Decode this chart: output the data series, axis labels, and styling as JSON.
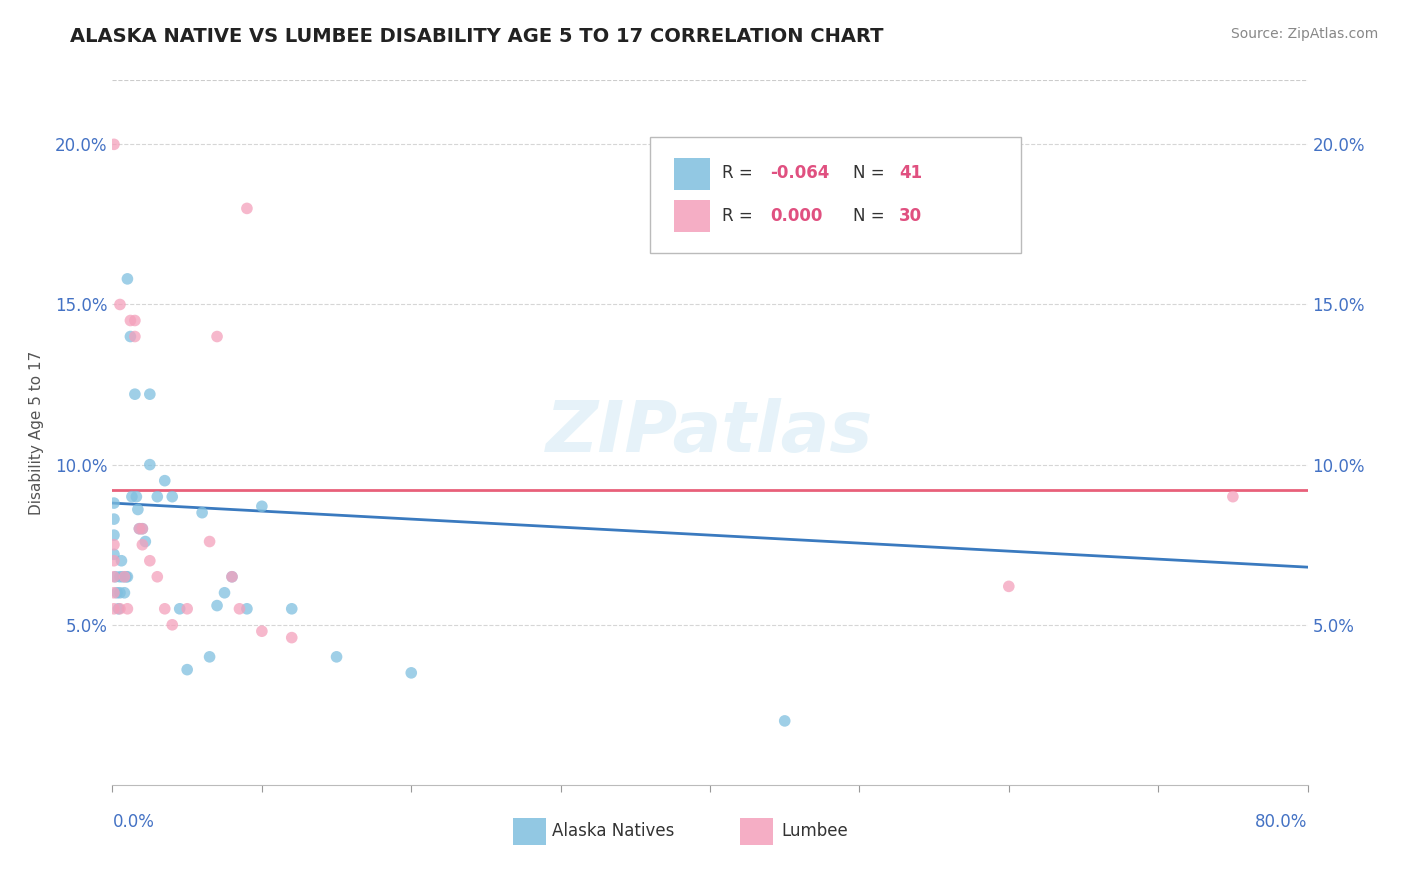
{
  "title": "ALASKA NATIVE VS LUMBEE DISABILITY AGE 5 TO 17 CORRELATION CHART",
  "source": "Source: ZipAtlas.com",
  "ylabel": "Disability Age 5 to 17",
  "y_ticks": [
    0.05,
    0.1,
    0.15,
    0.2
  ],
  "y_tick_labels": [
    "5.0%",
    "10.0%",
    "15.0%",
    "20.0%"
  ],
  "xlim": [
    0.0,
    0.8
  ],
  "ylim": [
    0.0,
    0.22
  ],
  "alaska_color": "#7fbfdf",
  "lumbee_color": "#f4a0bb",
  "alaska_line_color": "#3a7abf",
  "lumbee_line_color": "#e8607a",
  "alaska_natives_x": [
    0.001,
    0.001,
    0.001,
    0.001,
    0.002,
    0.003,
    0.004,
    0.005,
    0.005,
    0.006,
    0.007,
    0.008,
    0.009,
    0.01,
    0.01,
    0.012,
    0.013,
    0.015,
    0.016,
    0.017,
    0.018,
    0.02,
    0.022,
    0.025,
    0.025,
    0.03,
    0.035,
    0.04,
    0.045,
    0.05,
    0.06,
    0.065,
    0.07,
    0.075,
    0.08,
    0.09,
    0.1,
    0.12,
    0.15,
    0.2,
    0.45
  ],
  "alaska_natives_y": [
    0.072,
    0.078,
    0.083,
    0.088,
    0.065,
    0.06,
    0.055,
    0.06,
    0.065,
    0.07,
    0.065,
    0.06,
    0.065,
    0.065,
    0.158,
    0.14,
    0.09,
    0.122,
    0.09,
    0.086,
    0.08,
    0.08,
    0.076,
    0.122,
    0.1,
    0.09,
    0.095,
    0.09,
    0.055,
    0.036,
    0.085,
    0.04,
    0.056,
    0.06,
    0.065,
    0.055,
    0.087,
    0.055,
    0.04,
    0.035,
    0.02
  ],
  "lumbee_x": [
    0.001,
    0.001,
    0.001,
    0.001,
    0.001,
    0.001,
    0.005,
    0.005,
    0.008,
    0.01,
    0.012,
    0.015,
    0.015,
    0.018,
    0.02,
    0.02,
    0.025,
    0.03,
    0.035,
    0.04,
    0.05,
    0.065,
    0.07,
    0.08,
    0.085,
    0.09,
    0.1,
    0.12,
    0.6,
    0.75
  ],
  "lumbee_y": [
    0.055,
    0.06,
    0.065,
    0.07,
    0.075,
    0.2,
    0.055,
    0.15,
    0.065,
    0.055,
    0.145,
    0.145,
    0.14,
    0.08,
    0.075,
    0.08,
    0.07,
    0.065,
    0.055,
    0.05,
    0.055,
    0.076,
    0.14,
    0.065,
    0.055,
    0.18,
    0.048,
    0.046,
    0.062,
    0.09
  ],
  "alaska_trend_x": [
    0.0,
    0.8
  ],
  "alaska_trend_y_start": 0.088,
  "alaska_trend_y_end": 0.068,
  "lumbee_trend_y": 0.092
}
